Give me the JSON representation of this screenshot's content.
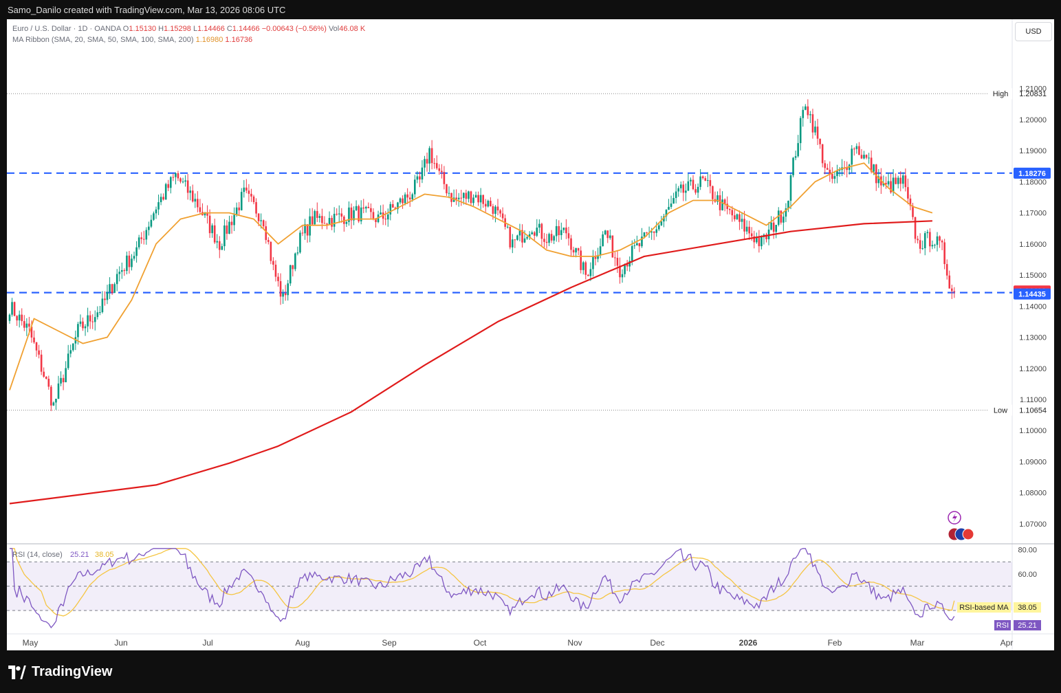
{
  "header": {
    "author_line": "Samo_Danilo created with TradingView.com, Mar 13, 2026 08:06 UTC"
  },
  "legend": {
    "symbol": "Euro / U.S. Dollar · 1D · OANDA",
    "o_label": "O",
    "o_value": "1.15130",
    "h_label": "H",
    "h_value": "1.15298",
    "l_label": "L",
    "l_value": "1.14466",
    "c_label": "C",
    "c_value": "1.14466",
    "change": "−0.00643 (−0.56%)",
    "vol_label": "Vol",
    "vol_value": "46.08 K",
    "ma_label": "MA Ribbon (SMA, 20, SMA, 50, SMA, 100, SMA, 200)",
    "ma_value_1": "1.16980",
    "ma_value_2": "1.16736"
  },
  "currency_button": "USD",
  "rsi_legend": {
    "label": "RSI (14, close)",
    "rsi_value": "25.21",
    "ma_value": "38.05"
  },
  "footer": {
    "brand": "TradingView"
  },
  "colors": {
    "up": "#089981",
    "down": "#f23645",
    "sma20": "#f0a030",
    "sma200": "#e01b1b",
    "level": "#2962ff",
    "rsi": "#7e57c2",
    "rsi_ma": "#f5c542"
  },
  "chart_data": [
    {
      "type": "candlestick",
      "axis": {
        "y_ticks": [
          "1.21000",
          "1.20000",
          "1.19000",
          "1.18000",
          "1.17000",
          "1.16000",
          "1.15000",
          "1.14000",
          "1.13000",
          "1.12000",
          "1.11000",
          "1.10000",
          "1.09000",
          "1.08000",
          "1.07000"
        ],
        "y_tick_values": [
          1.21,
          1.2,
          1.19,
          1.18,
          1.17,
          1.16,
          1.15,
          1.14,
          1.13,
          1.12,
          1.11,
          1.1,
          1.09,
          1.08,
          1.07
        ],
        "ylim": [
          1.0638,
          1.2203
        ],
        "x_ticks": [
          "May",
          "Jun",
          "Jul",
          "Aug",
          "Sep",
          "Oct",
          "Nov",
          "Dec",
          "2026",
          "Feb",
          "Mar",
          "Apr"
        ]
      },
      "markers": {
        "high_label": "High",
        "high_value": "1.20831",
        "low_label": "Low",
        "low_value": "1.10654",
        "high": 1.20831,
        "low": 1.10654
      },
      "levels": [
        {
          "value": 1.18276,
          "label": "1.18276"
        },
        {
          "value": 1.14435,
          "label": "1.14435"
        }
      ],
      "last_price": {
        "value": 1.14466,
        "label": "1.14466"
      },
      "waypoints": [
        [
          0,
          1.14
        ],
        [
          8,
          1.132
        ],
        [
          14,
          1.118
        ],
        [
          18,
          1.108
        ],
        [
          28,
          1.132
        ],
        [
          38,
          1.14
        ],
        [
          44,
          1.15
        ],
        [
          52,
          1.158
        ],
        [
          60,
          1.172
        ],
        [
          68,
          1.182
        ],
        [
          76,
          1.174
        ],
        [
          86,
          1.16
        ],
        [
          96,
          1.176
        ],
        [
          104,
          1.168
        ],
        [
          108,
          1.152
        ],
        [
          112,
          1.142
        ],
        [
          118,
          1.16
        ],
        [
          124,
          1.168
        ],
        [
          132,
          1.168
        ],
        [
          142,
          1.17
        ],
        [
          152,
          1.168
        ],
        [
          164,
          1.176
        ],
        [
          168,
          1.18
        ],
        [
          172,
          1.19
        ],
        [
          176,
          1.182
        ],
        [
          182,
          1.174
        ],
        [
          190,
          1.176
        ],
        [
          198,
          1.172
        ],
        [
          206,
          1.16
        ],
        [
          214,
          1.166
        ],
        [
          220,
          1.162
        ],
        [
          228,
          1.164
        ],
        [
          236,
          1.15
        ],
        [
          244,
          1.164
        ],
        [
          250,
          1.152
        ],
        [
          256,
          1.158
        ],
        [
          266,
          1.166
        ],
        [
          274,
          1.176
        ],
        [
          284,
          1.18
        ],
        [
          292,
          1.172
        ],
        [
          300,
          1.166
        ],
        [
          308,
          1.16
        ],
        [
          318,
          1.172
        ],
        [
          322,
          1.19
        ],
        [
          326,
          1.206
        ],
        [
          330,
          1.196
        ],
        [
          336,
          1.18
        ],
        [
          342,
          1.184
        ],
        [
          346,
          1.192
        ],
        [
          352,
          1.186
        ],
        [
          358,
          1.178
        ],
        [
          366,
          1.18
        ],
        [
          372,
          1.16
        ],
        [
          378,
          1.162
        ],
        [
          382,
          1.158
        ],
        [
          386,
          1.145
        ]
      ],
      "sma20": [
        [
          0,
          1.113
        ],
        [
          10,
          1.136
        ],
        [
          20,
          1.132
        ],
        [
          30,
          1.128
        ],
        [
          40,
          1.13
        ],
        [
          50,
          1.142
        ],
        [
          60,
          1.16
        ],
        [
          70,
          1.168
        ],
        [
          80,
          1.17
        ],
        [
          90,
          1.17
        ],
        [
          100,
          1.168
        ],
        [
          110,
          1.16
        ],
        [
          120,
          1.166
        ],
        [
          130,
          1.166
        ],
        [
          140,
          1.168
        ],
        [
          150,
          1.168
        ],
        [
          160,
          1.172
        ],
        [
          170,
          1.176
        ],
        [
          180,
          1.175
        ],
        [
          190,
          1.172
        ],
        [
          200,
          1.168
        ],
        [
          210,
          1.164
        ],
        [
          220,
          1.158
        ],
        [
          230,
          1.156
        ],
        [
          240,
          1.156
        ],
        [
          250,
          1.158
        ],
        [
          260,
          1.162
        ],
        [
          270,
          1.17
        ],
        [
          280,
          1.174
        ],
        [
          290,
          1.174
        ],
        [
          300,
          1.17
        ],
        [
          310,
          1.166
        ],
        [
          320,
          1.172
        ],
        [
          330,
          1.18
        ],
        [
          340,
          1.184
        ],
        [
          350,
          1.186
        ],
        [
          360,
          1.178
        ],
        [
          370,
          1.172
        ],
        [
          378,
          1.17
        ]
      ],
      "sma200": [
        [
          0,
          1.0765
        ],
        [
          30,
          1.0795
        ],
        [
          60,
          1.0825
        ],
        [
          90,
          1.0895
        ],
        [
          110,
          1.095
        ],
        [
          140,
          1.106
        ],
        [
          170,
          1.121
        ],
        [
          200,
          1.135
        ],
        [
          230,
          1.146
        ],
        [
          260,
          1.156
        ],
        [
          290,
          1.16
        ],
        [
          320,
          1.164
        ],
        [
          350,
          1.1665
        ],
        [
          378,
          1.1674
        ]
      ]
    },
    {
      "type": "line",
      "name": "RSI (14, close)",
      "axis": {
        "y_ticks": [
          "80.00",
          "60.00"
        ],
        "y_tick_values": [
          80,
          60
        ],
        "ylim": [
          13,
          82
        ],
        "band": [
          30,
          70
        ]
      },
      "last": {
        "rsi_label": "RSI",
        "rsi_value": "25.21",
        "rsi": 25.21,
        "ma_label": "RSI-based MA",
        "ma_value": "38.05",
        "ma": 38.05
      }
    }
  ]
}
